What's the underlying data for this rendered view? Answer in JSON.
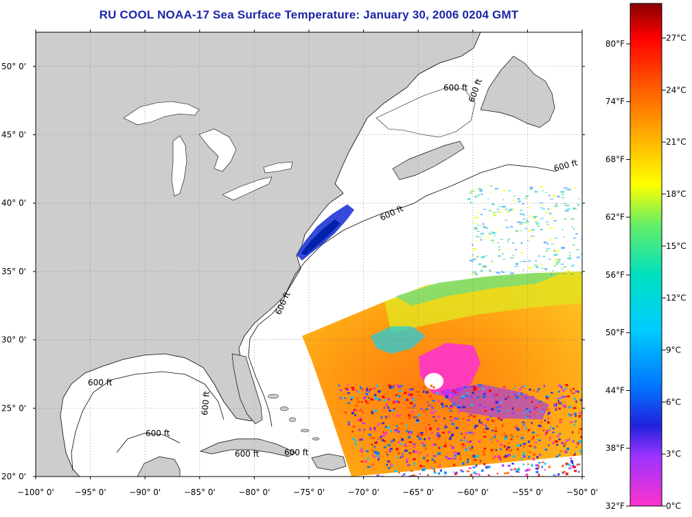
{
  "title": "RU COOL  NOAA-17  Sea Surface Temperature:  January 30, 2006 0204 GMT",
  "map": {
    "lat_range": [
      20,
      52.5
    ],
    "lon_range": [
      -100,
      -50
    ],
    "lat_ticks": [
      {
        "deg": 20,
        "label": "20° 0'"
      },
      {
        "deg": 25,
        "label": "25° 0'"
      },
      {
        "deg": 30,
        "label": "30° 0'"
      },
      {
        "deg": 35,
        "label": "35° 0'"
      },
      {
        "deg": 40,
        "label": "40° 0'"
      },
      {
        "deg": 45,
        "label": "45° 0'"
      },
      {
        "deg": 50,
        "label": "50° 0'"
      }
    ],
    "lon_ticks": [
      {
        "deg": -100,
        "label": "−100° 0'"
      },
      {
        "deg": -95,
        "label": "−95° 0'"
      },
      {
        "deg": -90,
        "label": "−90° 0'"
      },
      {
        "deg": -85,
        "label": "−85° 0'"
      },
      {
        "deg": -80,
        "label": "−80° 0'"
      },
      {
        "deg": -75,
        "label": "−75° 0'"
      },
      {
        "deg": -70,
        "label": "−70° 0'"
      },
      {
        "deg": -65,
        "label": "−65° 0'"
      },
      {
        "deg": -60,
        "label": "−60° 0'"
      },
      {
        "deg": -55,
        "label": "−55° 0'"
      },
      {
        "deg": -50,
        "label": "−50° 0'"
      }
    ],
    "isobath_label": "600 ft",
    "colors": {
      "land": "#cdcdcd",
      "ocean": "#ffffff",
      "coast": "#000000",
      "grid": "#777777"
    }
  },
  "colorbar": {
    "range_c": [
      0,
      29
    ],
    "celsius_labels": [
      "0°C",
      "3°C",
      "6°C",
      "9°C",
      "12°C",
      "15°C",
      "18°C",
      "21°C",
      "24°C",
      "27°C"
    ],
    "fahrenheit_labels": [
      "32°F",
      "38°F",
      "44°F",
      "50°F",
      "56°F",
      "62°F",
      "68°F",
      "74°F",
      "80°F"
    ],
    "fahrenheit_values": [
      32,
      38,
      44,
      50,
      56,
      62,
      68,
      74,
      80
    ],
    "gradient": [
      "#ff33cc",
      "#9933ff",
      "#2222dd",
      "#0077ff",
      "#00ccff",
      "#00e0c0",
      "#66ee66",
      "#ffff00",
      "#ffaa00",
      "#ff5500",
      "#ff0000",
      "#880000"
    ]
  }
}
